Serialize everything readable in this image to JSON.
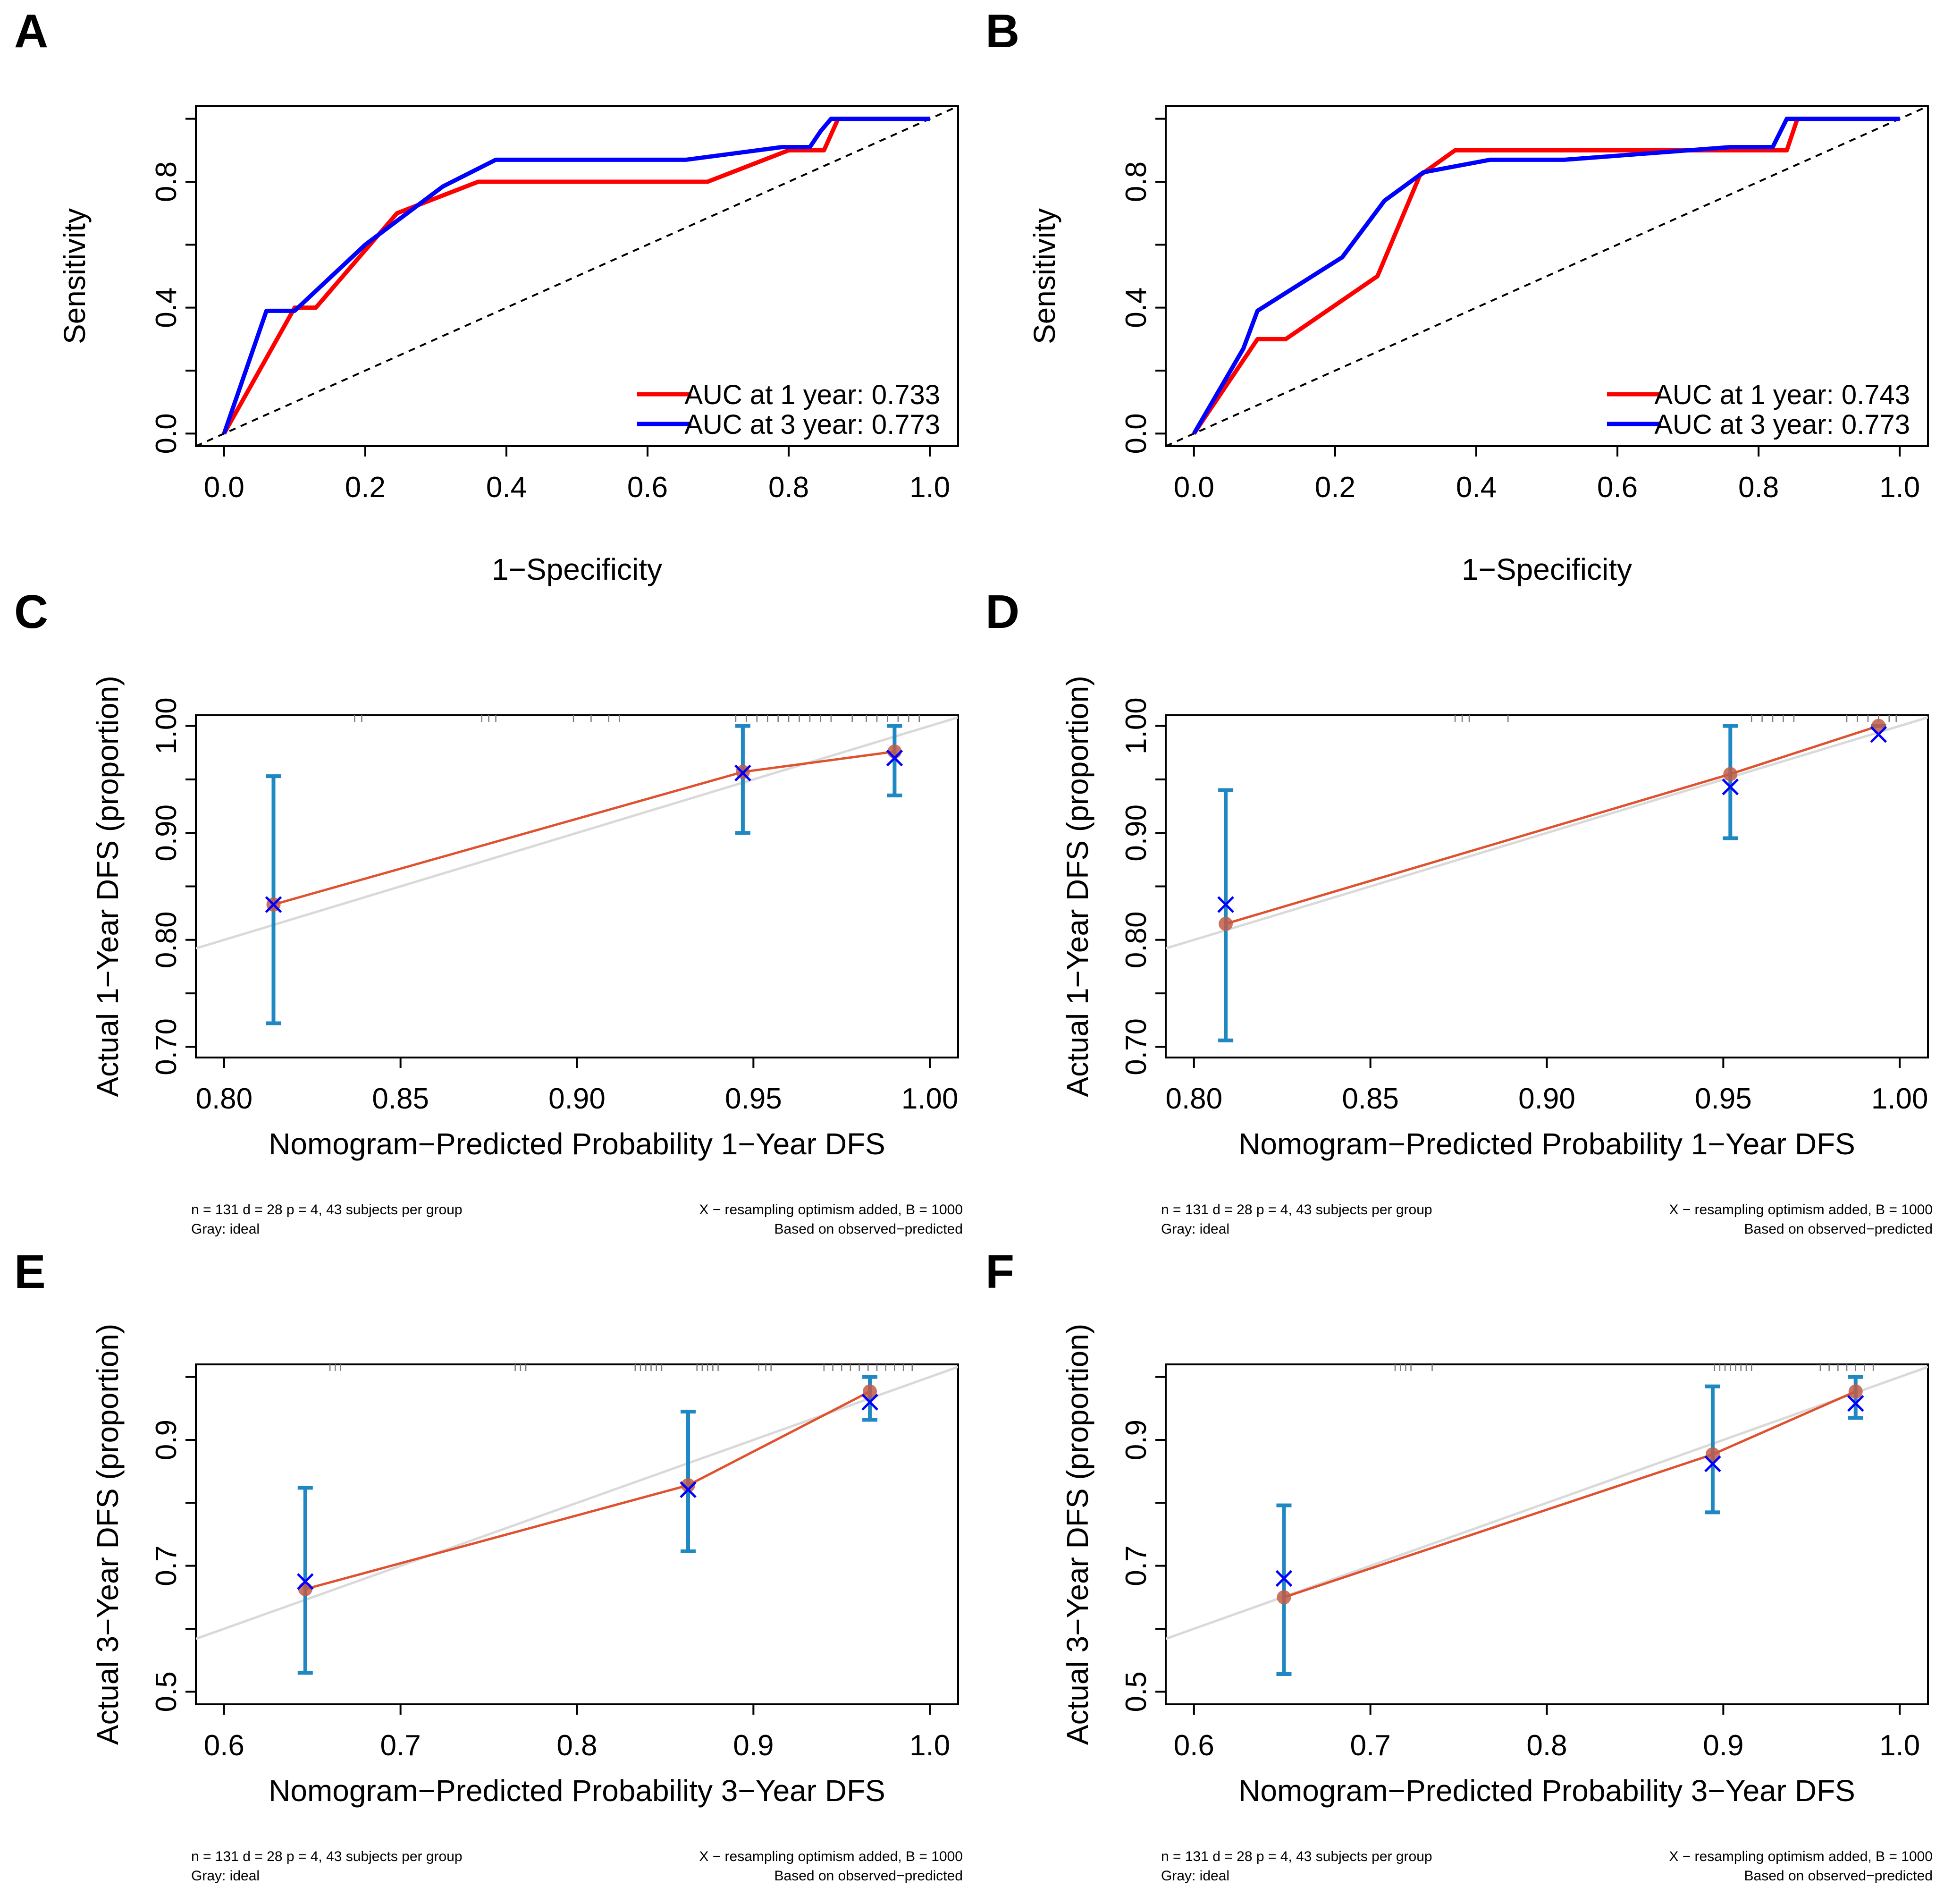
{
  "colors": {
    "red_curve": "#ff0000",
    "blue_curve": "#0000ff",
    "apparent": "#e0522f",
    "ideal": "#d9d9d9",
    "error_bar": "#1f87c2",
    "bias_marker": "#0000ff",
    "point": "#c25c48",
    "rug": "#7a7a7a"
  },
  "chart_data": [
    {
      "panel": "A",
      "type": "line",
      "title": "",
      "xlabel": "1−Specificity",
      "ylabel": "Sensitivity",
      "xlim": [
        0,
        1
      ],
      "ylim": [
        0,
        1
      ],
      "x_ticks": [
        "0.0",
        "0.2",
        "0.4",
        "0.6",
        "0.8",
        "1.0"
      ],
      "y_ticks": [
        "0.0",
        "0.4",
        "0.8"
      ],
      "legend": [
        "AUC at 1 year: 0.733",
        "AUC at 3 year: 0.773"
      ],
      "series": [
        {
          "name": "AUC at 1 year: 0.733",
          "color": "red",
          "x": [
            0,
            0.1,
            0.13,
            0.245,
            0.36,
            0.685,
            0.8,
            0.85,
            0.87,
            1.0
          ],
          "y": [
            0,
            0.4,
            0.4,
            0.7,
            0.8,
            0.8,
            0.9,
            0.9,
            1.0,
            1.0
          ]
        },
        {
          "name": "AUC at 3 year: 0.773",
          "color": "blue",
          "x": [
            0,
            0.06,
            0.1,
            0.2,
            0.31,
            0.385,
            0.655,
            0.79,
            0.83,
            0.845,
            0.86,
            1.0
          ],
          "y": [
            0,
            0.39,
            0.39,
            0.6,
            0.785,
            0.87,
            0.87,
            0.91,
            0.91,
            0.96,
            1.0,
            1.0
          ]
        }
      ]
    },
    {
      "panel": "B",
      "type": "line",
      "title": "",
      "xlabel": "1−Specificity",
      "ylabel": "Sensitivity",
      "xlim": [
        0,
        1
      ],
      "ylim": [
        0,
        1
      ],
      "x_ticks": [
        "0.0",
        "0.2",
        "0.4",
        "0.6",
        "0.8",
        "1.0"
      ],
      "y_ticks": [
        "0.0",
        "0.4",
        "0.8"
      ],
      "legend": [
        "AUC at 1 year: 0.743",
        "AUC at 3 year: 0.773"
      ],
      "series": [
        {
          "name": "AUC at 1 year: 0.743",
          "color": "red",
          "x": [
            0,
            0.09,
            0.13,
            0.26,
            0.32,
            0.37,
            0.84,
            0.855,
            1.0
          ],
          "y": [
            0,
            0.3,
            0.3,
            0.5,
            0.82,
            0.9,
            0.9,
            1.0,
            1.0
          ]
        },
        {
          "name": "AUC at 3 year: 0.773",
          "color": "blue",
          "x": [
            0,
            0.07,
            0.09,
            0.21,
            0.27,
            0.325,
            0.42,
            0.525,
            0.76,
            0.82,
            0.84,
            1.0
          ],
          "y": [
            0,
            0.27,
            0.39,
            0.56,
            0.74,
            0.83,
            0.87,
            0.87,
            0.91,
            0.91,
            1.0,
            1.0
          ]
        }
      ]
    },
    {
      "panel": "C",
      "type": "scatter",
      "title": "",
      "xlabel": "Nomogram−Predicted Probability 1−Year DFS",
      "ylabel": "Actual 1−Year DFS (proportion)",
      "xlim": [
        0.792,
        1.008
      ],
      "ylim": [
        0.69,
        1.01
      ],
      "x_ticks": [
        "0.80",
        "0.85",
        "0.90",
        "0.95",
        "1.00"
      ],
      "y_ticks": [
        "0.70",
        "0.80",
        "0.90",
        "1.00"
      ],
      "ideal_line": true,
      "predicted": [
        0.814,
        0.947,
        0.99
      ],
      "observed": [
        0.833,
        0.957,
        0.976
      ],
      "bias_corrected": [
        0.833,
        0.956,
        0.97
      ],
      "ci_lower": [
        0.722,
        0.9,
        0.935
      ],
      "ci_upper": [
        0.953,
        1.0,
        1.0
      ],
      "rug": [
        0.837,
        0.839,
        0.873,
        0.875,
        0.877,
        0.899,
        0.904,
        0.909,
        0.912,
        0.945,
        0.948,
        0.951,
        0.954,
        0.957,
        0.96,
        0.963,
        0.966,
        0.969,
        0.972,
        0.978,
        0.982,
        0.985,
        0.988,
        0.991,
        0.994,
        0.997
      ],
      "footnote_left": [
        "n = 131 d = 28 p = 4, 43 subjects per group",
        "Gray: ideal"
      ],
      "footnote_right": [
        "X − resampling optimism added, B = 1000",
        "Based on observed−predicted"
      ]
    },
    {
      "panel": "D",
      "type": "scatter",
      "title": "",
      "xlabel": "Nomogram−Predicted Probability 1−Year DFS",
      "ylabel": "Actual 1−Year DFS (proportion)",
      "xlim": [
        0.792,
        1.008
      ],
      "ylim": [
        0.69,
        1.01
      ],
      "x_ticks": [
        "0.80",
        "0.85",
        "0.90",
        "0.95",
        "1.00"
      ],
      "y_ticks": [
        "0.70",
        "0.80",
        "0.90",
        "1.00"
      ],
      "ideal_line": true,
      "predicted": [
        0.809,
        0.952,
        0.994
      ],
      "observed": [
        0.815,
        0.955,
        1.0
      ],
      "bias_corrected": [
        0.833,
        0.943,
        0.992
      ],
      "ci_lower": [
        0.706,
        0.895,
        1.0
      ],
      "ci_upper": [
        0.94,
        1.0,
        1.0
      ],
      "rug": [
        0.874,
        0.876,
        0.878,
        0.889,
        0.958,
        0.961,
        0.964,
        0.967,
        0.97,
        0.985,
        0.988,
        0.991,
        0.994,
        0.997,
        0.999
      ],
      "footnote_left": [
        "n = 131 d = 28 p = 4, 43 subjects per group",
        "Gray: ideal"
      ],
      "footnote_right": [
        "X − resampling optimism added, B = 1000",
        "Based on observed−predicted"
      ]
    },
    {
      "panel": "E",
      "type": "scatter",
      "title": "",
      "xlabel": "Nomogram−Predicted Probability 3−Year DFS",
      "ylabel": "Actual 3−Year DFS (proportion)",
      "xlim": [
        0.584,
        1.016
      ],
      "ylim": [
        0.48,
        1.02
      ],
      "x_ticks": [
        "0.6",
        "0.7",
        "0.8",
        "0.9",
        "1.0"
      ],
      "y_ticks": [
        "0.5",
        "0.7",
        "0.9"
      ],
      "ideal_line": true,
      "predicted": [
        0.646,
        0.863,
        0.966
      ],
      "observed": [
        0.663,
        0.828,
        0.977
      ],
      "bias_corrected": [
        0.675,
        0.821,
        0.96
      ],
      "ci_lower": [
        0.53,
        0.723,
        0.932
      ],
      "ci_upper": [
        0.824,
        0.945,
        1.0
      ],
      "rug": [
        0.66,
        0.663,
        0.666,
        0.765,
        0.768,
        0.771,
        0.833,
        0.836,
        0.839,
        0.842,
        0.845,
        0.848,
        0.868,
        0.871,
        0.874,
        0.877,
        0.88,
        0.903,
        0.907,
        0.91,
        0.94,
        0.945,
        0.95,
        0.955,
        0.96,
        0.965,
        0.97,
        0.975,
        0.98,
        0.985,
        0.99
      ],
      "footnote_left": [
        "n = 131 d = 28 p = 4, 43 subjects per group",
        "Gray: ideal"
      ],
      "footnote_right": [
        "X − resampling optimism added, B = 1000",
        "Based on observed−predicted"
      ]
    },
    {
      "panel": "F",
      "type": "scatter",
      "title": "",
      "xlabel": "Nomogram−Predicted Probability 3−Year DFS",
      "ylabel": "Actual 3−Year DFS (proportion)",
      "xlim": [
        0.584,
        1.016
      ],
      "ylim": [
        0.48,
        1.02
      ],
      "x_ticks": [
        "0.6",
        "0.7",
        "0.8",
        "0.9",
        "1.0"
      ],
      "y_ticks": [
        "0.5",
        "0.7",
        "0.9"
      ],
      "ideal_line": true,
      "predicted": [
        0.651,
        0.894,
        0.975
      ],
      "observed": [
        0.65,
        0.877,
        0.977
      ],
      "bias_corrected": [
        0.68,
        0.862,
        0.958
      ],
      "ci_lower": [
        0.528,
        0.785,
        0.935
      ],
      "ci_upper": [
        0.796,
        0.985,
        1.0
      ],
      "rug": [
        0.714,
        0.717,
        0.72,
        0.723,
        0.735,
        0.895,
        0.898,
        0.901,
        0.904,
        0.907,
        0.91,
        0.913,
        0.916,
        0.955,
        0.96,
        0.965,
        0.97,
        0.975,
        0.98,
        0.985
      ],
      "footnote_left": [
        "n = 131 d = 28 p = 4, 43 subjects per group",
        "Gray: ideal"
      ],
      "footnote_right": [
        "X − resampling optimism added, B = 1000",
        "Based on observed−predicted"
      ]
    }
  ]
}
